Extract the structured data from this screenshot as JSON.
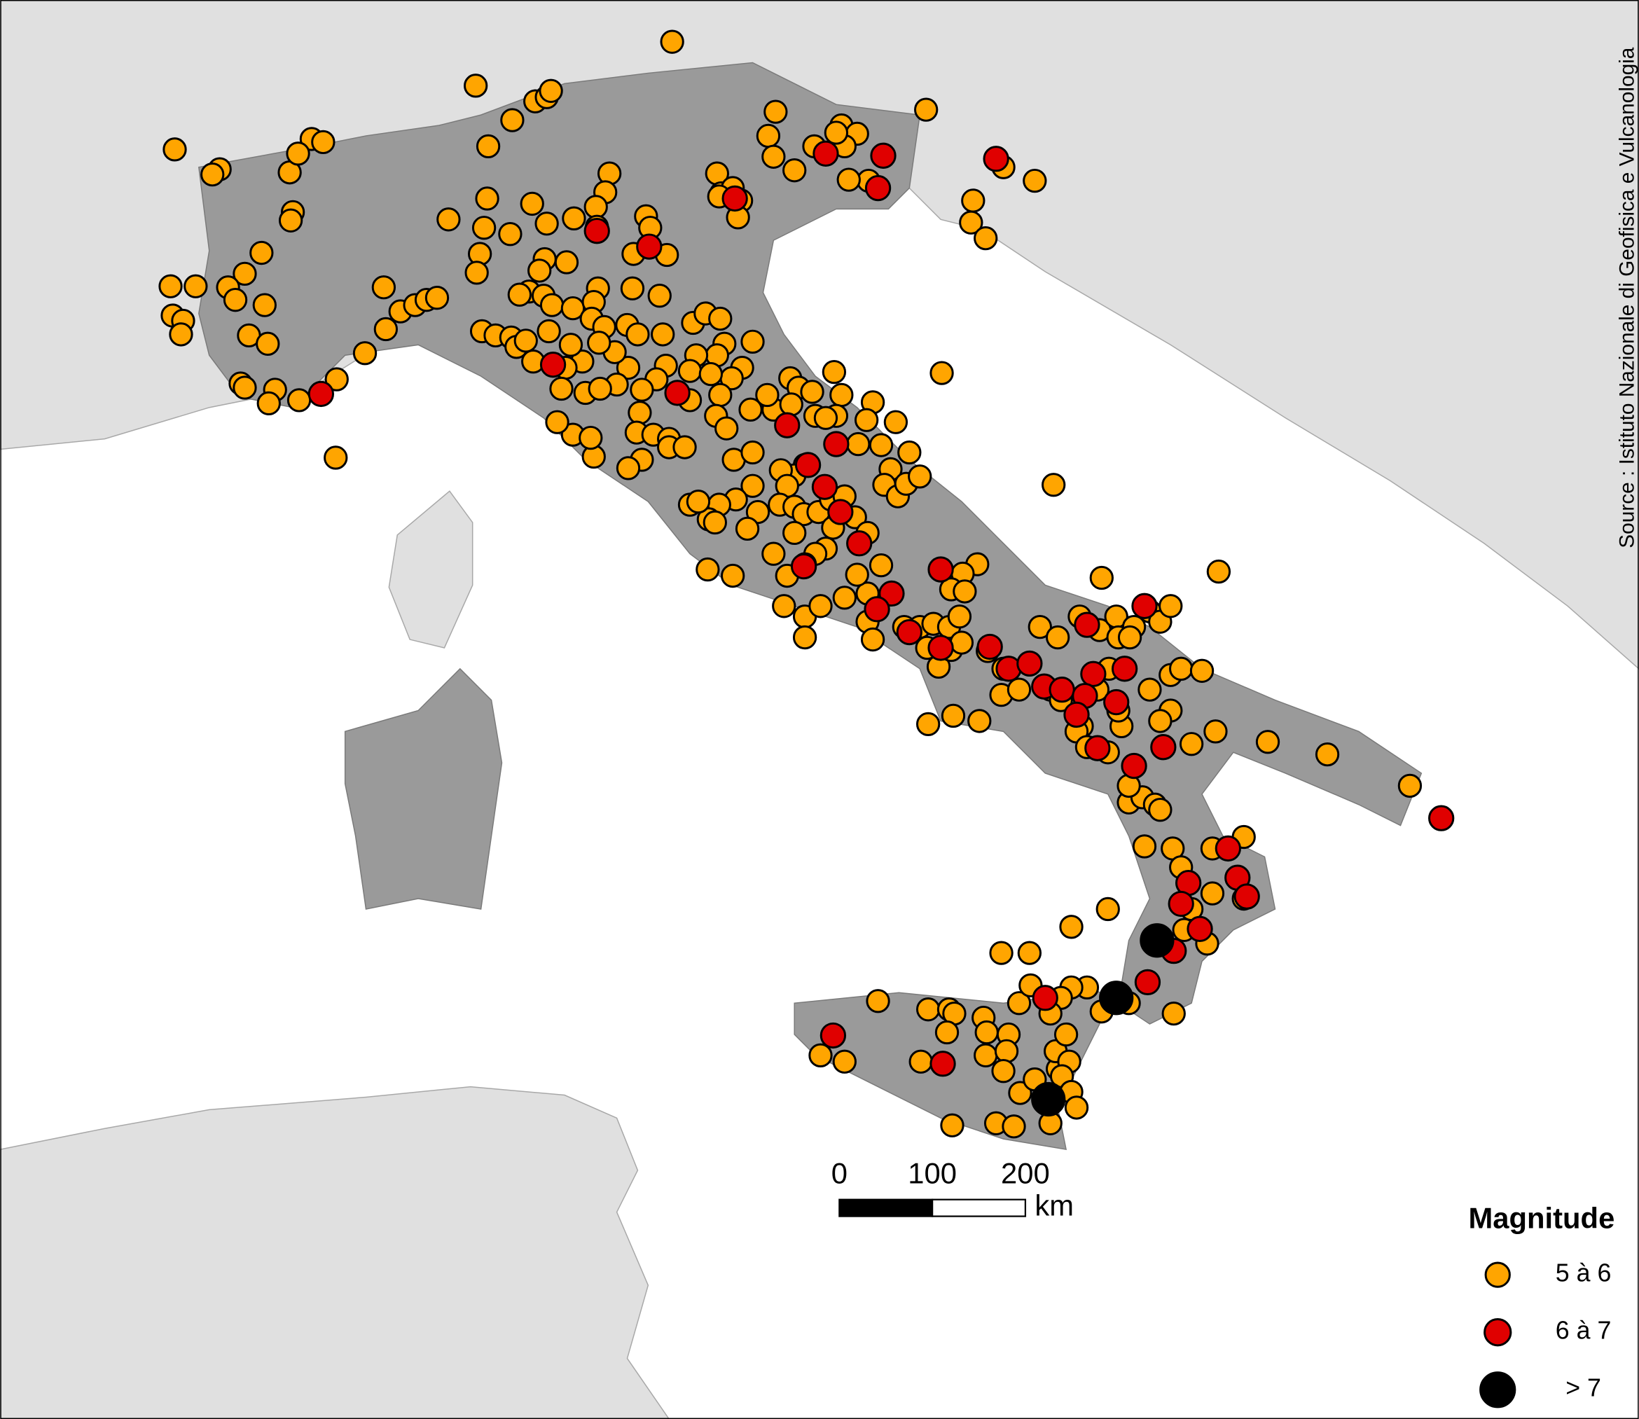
{
  "source": "Source : Istituto Nazionale di Geofisica e Vulcanologia",
  "legend": {
    "title": "Magnitude",
    "items": [
      {
        "label": "5 à 6",
        "color": "#ffa500"
      },
      {
        "label": "6 à 7",
        "color": "#e00000"
      },
      {
        "label": "> 7",
        "color": "#000000"
      }
    ]
  },
  "scale_bar": {
    "ticks": [
      0,
      100,
      200
    ],
    "unit": "km"
  }
}
